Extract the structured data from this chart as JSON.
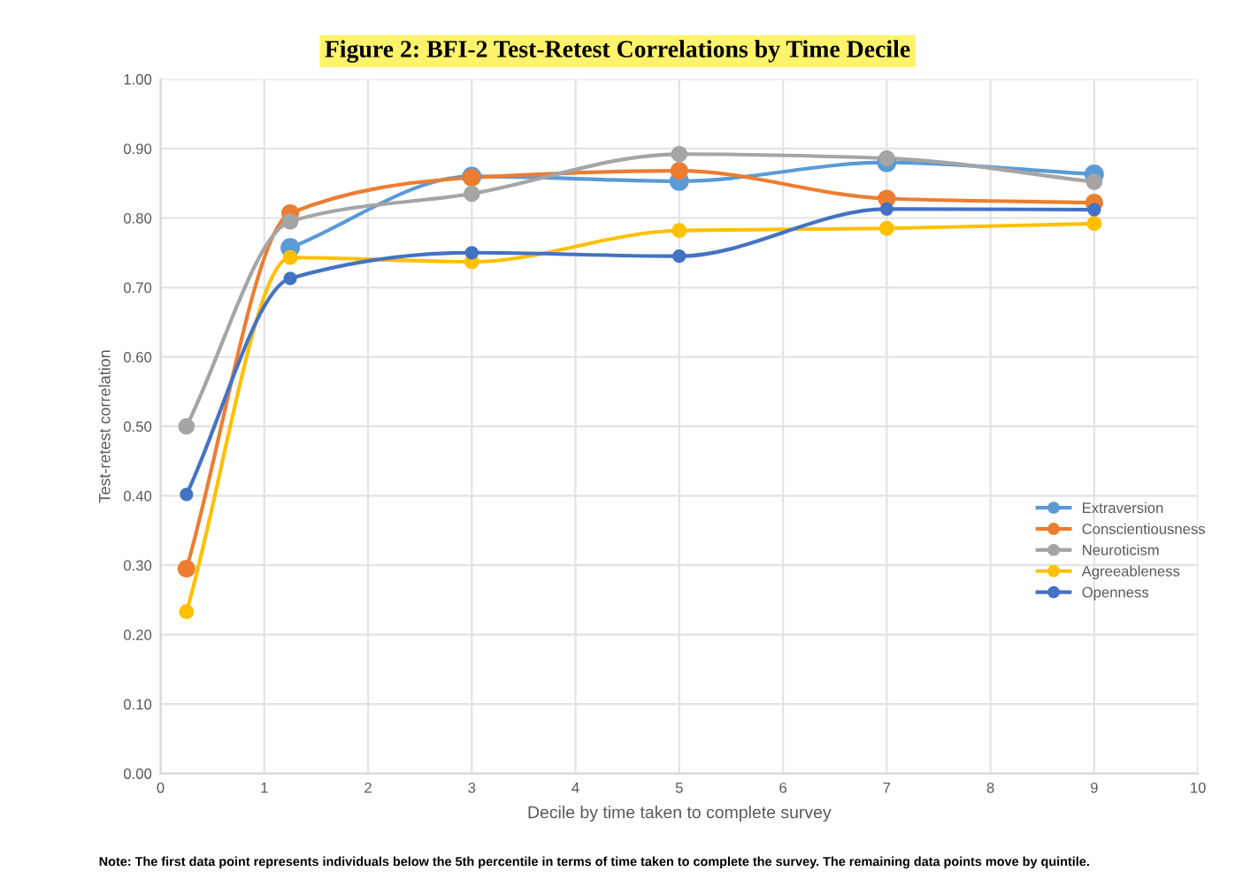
{
  "chart_data": {
    "type": "line",
    "title": "Figure 2: BFI-2 Test-Retest Correlations by Time Decile",
    "xlabel": "Decile by time taken to complete survey",
    "ylabel": "Test-retest correlation",
    "x": [
      0.25,
      1.25,
      3,
      5,
      7,
      9
    ],
    "series": [
      {
        "name": "Extraversion",
        "color": "#5b9bd5",
        "values": [
          null,
          0.757,
          0.86,
          0.853,
          0.88,
          0.863
        ]
      },
      {
        "name": "Conscientiousness",
        "color": "#ed7d31",
        "values": [
          0.295,
          0.807,
          0.858,
          0.868,
          0.828,
          0.822
        ]
      },
      {
        "name": "Neuroticism",
        "color": "#a5a5a5",
        "values": [
          0.5,
          0.795,
          0.835,
          0.892,
          0.886,
          0.852
        ]
      },
      {
        "name": "Agreeableness",
        "color": "#ffc000",
        "values": [
          0.233,
          0.743,
          0.737,
          0.782,
          0.785,
          0.792
        ]
      },
      {
        "name": "Openness",
        "color": "#4472c4",
        "values": [
          0.402,
          0.713,
          0.75,
          0.745,
          0.813,
          0.812
        ]
      }
    ],
    "xlim": [
      0,
      10
    ],
    "xticks": [
      0,
      1,
      2,
      3,
      4,
      5,
      6,
      7,
      8,
      9,
      10
    ],
    "ylim": [
      0,
      1
    ],
    "yticks": [
      {
        "value": 0,
        "label": "0.00"
      },
      {
        "value": 0.1,
        "label": "0.10"
      },
      {
        "value": 0.2,
        "label": "0.20"
      },
      {
        "value": 0.3,
        "label": "0.30"
      },
      {
        "value": 0.4,
        "label": "0.40"
      },
      {
        "value": 0.5,
        "label": "0.50"
      },
      {
        "value": 0.6,
        "label": "0.60"
      },
      {
        "value": 0.7,
        "label": "0.70"
      },
      {
        "value": 0.8,
        "label": "0.80"
      },
      {
        "value": 0.9,
        "label": "0.90"
      },
      {
        "value": 1,
        "label": "1.00"
      }
    ],
    "grid": true,
    "legend": "right",
    "marker": "circle",
    "line_style": "solid",
    "annotations": [
      "Note: The first data point represents individuals below the 5th percentile in terms of time taken to complete the survey. The remaining data points move by quintile."
    ]
  }
}
